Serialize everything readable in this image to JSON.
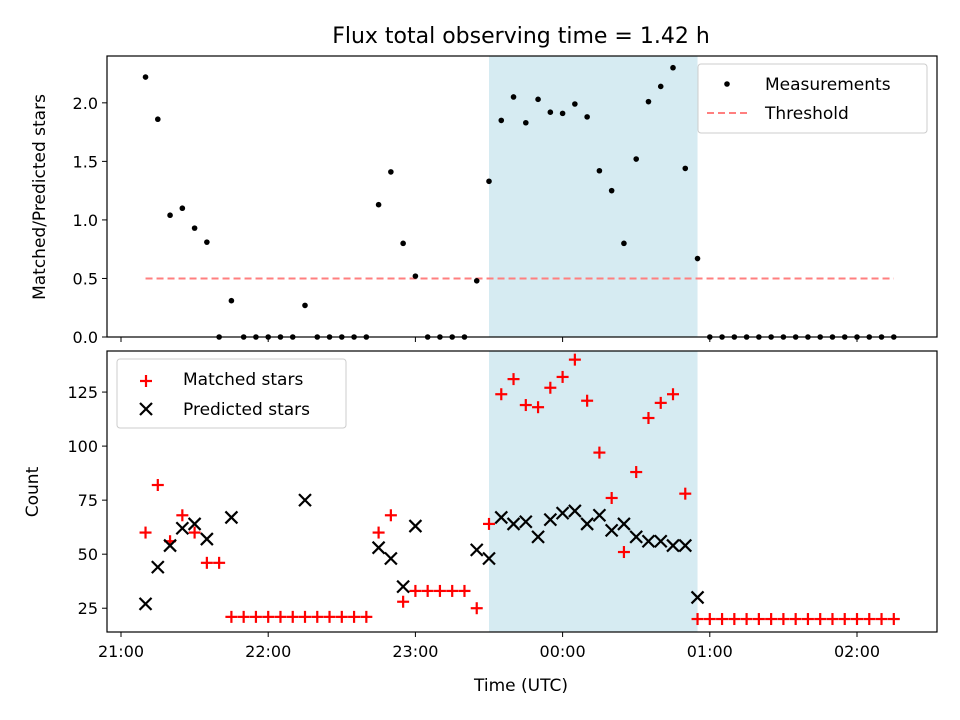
{
  "chart_data": {
    "type": "scatter",
    "title": "Flux total observing time = 1.42 h",
    "x_unit": "hours after 21:00 UTC",
    "x_ticks": [
      "21:00",
      "22:00",
      "23:00",
      "00:00",
      "01:00",
      "02:00"
    ],
    "xlabel": "Time (UTC)",
    "shaded_interval": {
      "from": "23:30",
      "to": "00:55",
      "color": "#add8e6"
    },
    "top_panel": {
      "ylabel": "Matched/Predicted stars",
      "ylim": [
        0,
        2.4
      ],
      "yticks": [
        "0.0",
        "0.5",
        "1.0",
        "1.5",
        "2.0"
      ],
      "legend_position": "upper right",
      "series": [
        {
          "name": "Measurements",
          "marker": "dot",
          "color": "#000000",
          "points": [
            [
              "21:10",
              2.22
            ],
            [
              "21:15",
              1.86
            ],
            [
              "21:20",
              1.04
            ],
            [
              "21:25",
              1.1
            ],
            [
              "21:30",
              0.93
            ],
            [
              "21:35",
              0.81
            ],
            [
              "21:40",
              0.0
            ],
            [
              "21:45",
              0.31
            ],
            [
              "21:50",
              0.0
            ],
            [
              "21:55",
              0.0
            ],
            [
              "22:00",
              0.0
            ],
            [
              "22:05",
              0.0
            ],
            [
              "22:10",
              0.0
            ],
            [
              "22:15",
              0.27
            ],
            [
              "22:20",
              0.0
            ],
            [
              "22:25",
              0.0
            ],
            [
              "22:30",
              0.0
            ],
            [
              "22:35",
              0.0
            ],
            [
              "22:40",
              0.0
            ],
            [
              "22:45",
              1.13
            ],
            [
              "22:50",
              1.41
            ],
            [
              "22:55",
              0.8
            ],
            [
              "23:00",
              0.52
            ],
            [
              "23:05",
              0.0
            ],
            [
              "23:10",
              0.0
            ],
            [
              "23:15",
              0.0
            ],
            [
              "23:20",
              0.0
            ],
            [
              "23:25",
              0.48
            ],
            [
              "23:30",
              1.33
            ],
            [
              "23:35",
              1.85
            ],
            [
              "23:40",
              2.05
            ],
            [
              "23:45",
              1.83
            ],
            [
              "23:50",
              2.03
            ],
            [
              "23:55",
              1.92
            ],
            [
              "00:00",
              1.91
            ],
            [
              "00:05",
              1.99
            ],
            [
              "00:10",
              1.88
            ],
            [
              "00:15",
              1.42
            ],
            [
              "00:20",
              1.25
            ],
            [
              "00:25",
              0.8
            ],
            [
              "00:30",
              1.52
            ],
            [
              "00:35",
              2.01
            ],
            [
              "00:40",
              2.14
            ],
            [
              "00:45",
              2.3
            ],
            [
              "00:50",
              1.44
            ],
            [
              "00:55",
              0.67
            ],
            [
              "01:00",
              0.0
            ],
            [
              "01:05",
              0.0
            ],
            [
              "01:10",
              0.0
            ],
            [
              "01:15",
              0.0
            ],
            [
              "01:20",
              0.0
            ],
            [
              "01:25",
              0.0
            ],
            [
              "01:30",
              0.0
            ],
            [
              "01:35",
              0.0
            ],
            [
              "01:40",
              0.0
            ],
            [
              "01:45",
              0.0
            ],
            [
              "01:50",
              0.0
            ],
            [
              "01:55",
              0.0
            ],
            [
              "02:00",
              0.0
            ],
            [
              "02:05",
              0.0
            ],
            [
              "02:10",
              0.0
            ],
            [
              "02:15",
              0.0
            ]
          ]
        },
        {
          "name": "Threshold",
          "style": "dashed-line",
          "color": "#ff7f7f",
          "value": 0.5,
          "x_range": [
            "21:10",
            "02:15"
          ]
        }
      ]
    },
    "bottom_panel": {
      "ylabel": "Count",
      "ylim": [
        14,
        144
      ],
      "yticks": [
        "25",
        "50",
        "75",
        "100",
        "125"
      ],
      "legend_position": "upper left",
      "series": [
        {
          "name": "Matched stars",
          "marker": "plus",
          "color": "#ff0000",
          "points": [
            [
              "21:10",
              60
            ],
            [
              "21:15",
              82
            ],
            [
              "21:20",
              56
            ],
            [
              "21:25",
              68
            ],
            [
              "21:30",
              60
            ],
            [
              "21:35",
              46
            ],
            [
              "21:40",
              46
            ],
            [
              "21:45",
              21
            ],
            [
              "21:50",
              21
            ],
            [
              "21:55",
              21
            ],
            [
              "22:00",
              21
            ],
            [
              "22:05",
              21
            ],
            [
              "22:10",
              21
            ],
            [
              "22:15",
              21
            ],
            [
              "22:20",
              21
            ],
            [
              "22:25",
              21
            ],
            [
              "22:30",
              21
            ],
            [
              "22:35",
              21
            ],
            [
              "22:40",
              21
            ],
            [
              "22:45",
              60
            ],
            [
              "22:50",
              68
            ],
            [
              "22:55",
              28
            ],
            [
              "23:00",
              33
            ],
            [
              "23:05",
              33
            ],
            [
              "23:10",
              33
            ],
            [
              "23:15",
              33
            ],
            [
              "23:20",
              33
            ],
            [
              "23:25",
              25
            ],
            [
              "23:30",
              64
            ],
            [
              "23:35",
              124
            ],
            [
              "23:40",
              131
            ],
            [
              "23:45",
              119
            ],
            [
              "23:50",
              118
            ],
            [
              "23:55",
              127
            ],
            [
              "00:00",
              132
            ],
            [
              "00:05",
              140
            ],
            [
              "00:10",
              121
            ],
            [
              "00:15",
              97
            ],
            [
              "00:20",
              76
            ],
            [
              "00:25",
              51
            ],
            [
              "00:30",
              88
            ],
            [
              "00:35",
              113
            ],
            [
              "00:40",
              120
            ],
            [
              "00:45",
              124
            ],
            [
              "00:50",
              78
            ],
            [
              "00:55",
              20
            ],
            [
              "01:00",
              20
            ],
            [
              "01:05",
              20
            ],
            [
              "01:10",
              20
            ],
            [
              "01:15",
              20
            ],
            [
              "01:20",
              20
            ],
            [
              "01:25",
              20
            ],
            [
              "01:30",
              20
            ],
            [
              "01:35",
              20
            ],
            [
              "01:40",
              20
            ],
            [
              "01:45",
              20
            ],
            [
              "01:50",
              20
            ],
            [
              "01:55",
              20
            ],
            [
              "02:00",
              20
            ],
            [
              "02:05",
              20
            ],
            [
              "02:10",
              20
            ],
            [
              "02:15",
              20
            ]
          ]
        },
        {
          "name": "Predicted stars",
          "marker": "x",
          "color": "#000000",
          "points": [
            [
              "21:10",
              27
            ],
            [
              "21:15",
              44
            ],
            [
              "21:20",
              54
            ],
            [
              "21:25",
              62
            ],
            [
              "21:30",
              64
            ],
            [
              "21:35",
              57
            ],
            [
              "21:45",
              67
            ],
            [
              "22:15",
              75
            ],
            [
              "22:45",
              53
            ],
            [
              "22:50",
              48
            ],
            [
              "22:55",
              35
            ],
            [
              "23:00",
              63
            ],
            [
              "23:25",
              52
            ],
            [
              "23:30",
              48
            ],
            [
              "23:35",
              67
            ],
            [
              "23:40",
              64
            ],
            [
              "23:45",
              65
            ],
            [
              "23:50",
              58
            ],
            [
              "23:55",
              66
            ],
            [
              "00:00",
              69
            ],
            [
              "00:05",
              70
            ],
            [
              "00:10",
              64
            ],
            [
              "00:15",
              68
            ],
            [
              "00:20",
              61
            ],
            [
              "00:25",
              64
            ],
            [
              "00:30",
              58
            ],
            [
              "00:35",
              56
            ],
            [
              "00:40",
              56
            ],
            [
              "00:45",
              54
            ],
            [
              "00:50",
              54
            ],
            [
              "00:55",
              30
            ]
          ]
        }
      ]
    }
  }
}
